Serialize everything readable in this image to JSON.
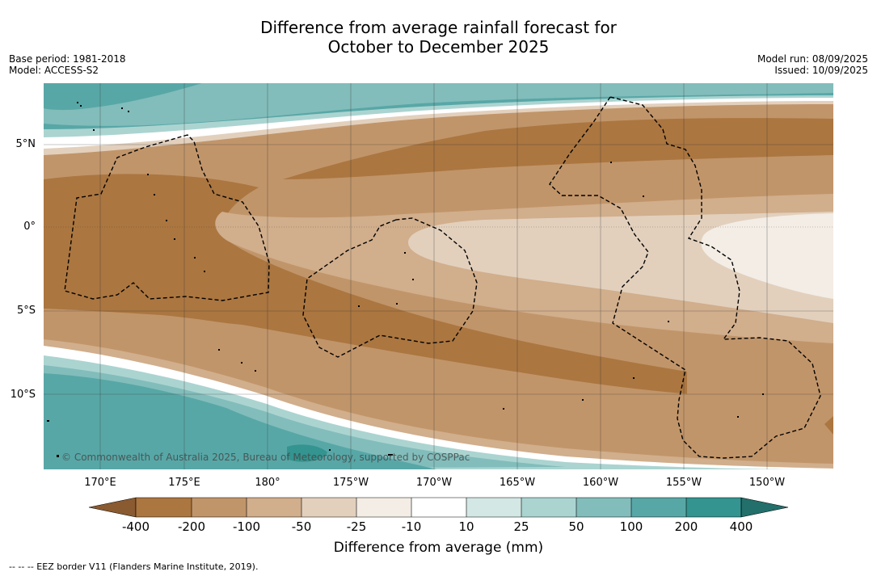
{
  "title": {
    "line1": "Difference from average rainfall forecast for",
    "line2": "October to December 2025"
  },
  "meta": {
    "base_period": "Base period: 1981-2018",
    "model": "Model: ACCESS-S2",
    "model_run": "Model run: 08/09/2025",
    "issued": "Issued: 10/09/2025"
  },
  "map": {
    "lat_labels": [
      "5°N",
      "0°",
      "5°S",
      "10°S"
    ],
    "lon_labels": [
      "170°E",
      "175°E",
      "180°",
      "175°W",
      "170°W",
      "165°W",
      "160°W",
      "155°W",
      "150°W"
    ],
    "copyright": "© Commonwealth of Australia 2025, Bureau of Meteorology, supported by COSPPac",
    "eez_style": "dashed black"
  },
  "legend": {
    "ticks": [
      "-400",
      "-200",
      "-100",
      "-50",
      "-25",
      "-10",
      "10",
      "25",
      "50",
      "100",
      "200",
      "400"
    ],
    "colors": [
      "#8a5a30",
      "#ab7640",
      "#c1956a",
      "#d1ae8c",
      "#e2d0bd",
      "#f3ede6",
      "#ffffff",
      "#d3e7e4",
      "#abd4d1",
      "#82bdbb",
      "#58a7a7",
      "#34948f",
      "#226f6b"
    ],
    "title": "Difference from average (mm)"
  },
  "footnote": "--  --  -- EEZ border V11 (Flanders Marine Institute, 2019)."
}
